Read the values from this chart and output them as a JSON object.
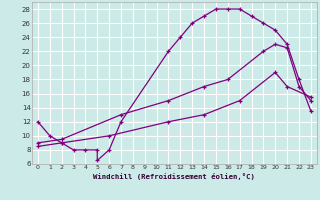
{
  "xlabel": "Windchill (Refroidissement éolien,°C)",
  "background_color": "#cceae7",
  "grid_color": "#ffffff",
  "line_color": "#800080",
  "xlim": [
    -0.5,
    23.5
  ],
  "ylim": [
    6,
    29
  ],
  "xticks": [
    0,
    1,
    2,
    3,
    4,
    5,
    6,
    7,
    8,
    9,
    10,
    11,
    12,
    13,
    14,
    15,
    16,
    17,
    18,
    19,
    20,
    21,
    22,
    23
  ],
  "yticks": [
    6,
    8,
    10,
    12,
    14,
    16,
    18,
    20,
    22,
    24,
    26,
    28
  ],
  "line1_x": [
    0,
    1,
    2,
    3,
    4,
    5,
    5,
    6,
    7,
    11,
    12,
    13,
    14,
    15,
    16,
    17,
    18,
    19,
    20,
    21,
    22,
    23
  ],
  "line1_y": [
    12,
    10,
    9,
    8,
    8,
    8,
    6.5,
    8,
    12,
    22,
    24,
    26,
    27,
    28,
    28,
    28,
    27,
    26,
    25,
    23,
    18,
    13.5
  ],
  "line2_x": [
    0,
    2,
    7,
    11,
    14,
    16,
    19,
    20,
    21,
    22,
    23
  ],
  "line2_y": [
    9,
    9.5,
    13,
    15,
    17,
    18,
    22,
    23,
    22.5,
    17,
    15
  ],
  "line3_x": [
    0,
    2,
    6,
    11,
    14,
    17,
    20,
    21,
    23
  ],
  "line3_y": [
    8.5,
    9,
    10,
    12,
    13,
    15,
    19,
    17,
    15.5
  ]
}
